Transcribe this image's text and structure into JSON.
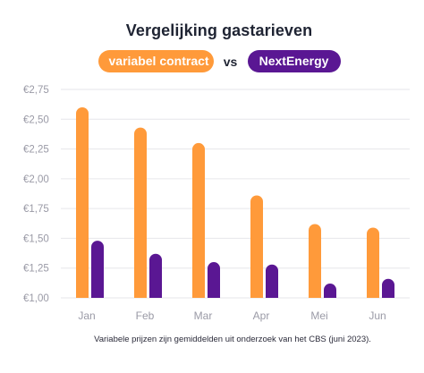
{
  "title": "Vergelijking gastarieven",
  "vs_label": "vs",
  "footnote": "Variabele prijzen zijn gemiddelden uit onderzoek van het CBS (juni 2023).",
  "colors": {
    "variabel": "#ff9a3a",
    "nextenergy": "#5a1793",
    "grid": "#e6e6ea",
    "axis_text": "#9a9aa6"
  },
  "chart_data": {
    "type": "bar",
    "title": "Vergelijking gastarieven",
    "xlabel": "",
    "ylabel": "",
    "categories": [
      "Jan",
      "Feb",
      "Mar",
      "Apr",
      "Mei",
      "Jun"
    ],
    "series": [
      {
        "name": "variabel contract",
        "color": "#ff9a3a",
        "values": [
          2.6,
          2.43,
          2.3,
          1.86,
          1.62,
          1.59
        ]
      },
      {
        "name": "NextEnergy",
        "color": "#5a1793",
        "values": [
          1.48,
          1.37,
          1.3,
          1.28,
          1.12,
          1.16
        ]
      }
    ],
    "ylim": [
      1.0,
      2.75
    ],
    "yticks": [
      1.0,
      1.25,
      1.5,
      1.75,
      2.0,
      2.25,
      2.5,
      2.75
    ],
    "ytick_labels": [
      "€1,00",
      "€1,25",
      "€1,50",
      "€1,75",
      "€2,00",
      "€2,25",
      "€2,50",
      "€2,75"
    ],
    "grid": true,
    "legend_position": "top-center"
  }
}
